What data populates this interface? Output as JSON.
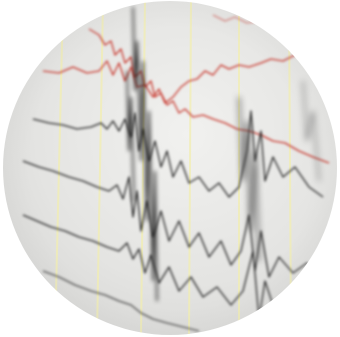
{
  "image": {
    "subject": "seismograph-traces",
    "colors": {
      "paper": "#e8e8e6",
      "grid_lines": "#f4f1b8",
      "red_trace": "#c8372d",
      "black_trace": "#2a2a2a",
      "background": "#ffffff"
    }
  }
}
